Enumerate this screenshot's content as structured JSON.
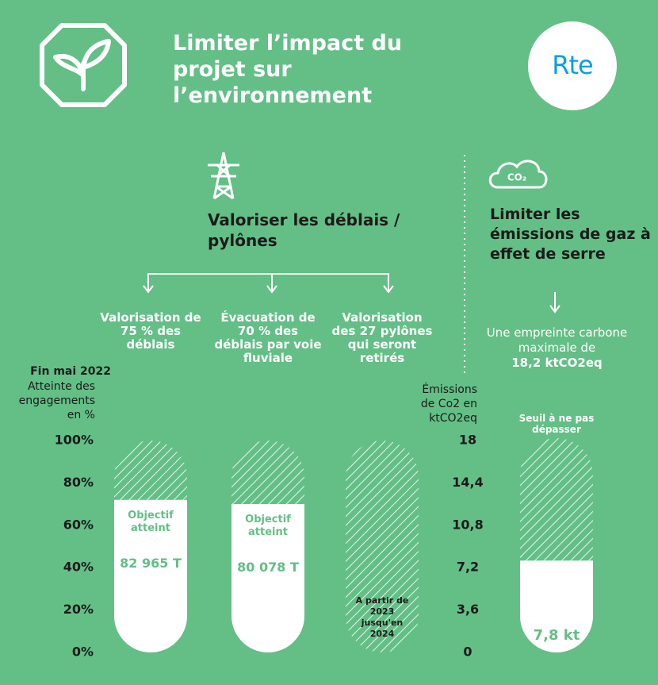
{
  "header": {
    "title": "Limiter l’impact du projet sur l’environnement",
    "logo": "Rte"
  },
  "sections": [
    {
      "title": "Valoriser les déblais / pylônes"
    },
    {
      "title": "Limiter les émissions de gaz à effet de serre",
      "subtitle": "Une empreinte carbone maximale de",
      "highlight": "18,2 ktCO2eq"
    }
  ],
  "chart_data": [
    {
      "type": "bar",
      "title": "Fin mai 2022",
      "y_label": "Atteinte des engagements en %",
      "categories": [
        "Valorisation de 75 % des déblais",
        "Évacuation de 70 % des déblais par voie fluviale",
        "Valorisation des 27 pylônes qui seront retirés"
      ],
      "values": [
        72,
        70,
        null
      ],
      "bar_notes": [
        [
          "Objectif atteint",
          "82 965 T"
        ],
        [
          "Objectif atteint",
          "80 078 T"
        ],
        [
          "A partir de 2023 jusqu'en 2024"
        ]
      ],
      "color": "#ffffff",
      "ylim": [
        0,
        100
      ],
      "yticks": [
        {
          "value": 0,
          "label": "0%"
        },
        {
          "value": 20,
          "label": "20%"
        },
        {
          "value": 40,
          "label": "40%"
        },
        {
          "value": 60,
          "label": "60%"
        },
        {
          "value": 80,
          "label": "80%"
        },
        {
          "value": 100,
          "label": "100%"
        }
      ]
    },
    {
      "type": "bar",
      "y_label": "Émissions de Co2 en ktCO2eq",
      "categories": [
        null
      ],
      "values": [
        7.8
      ],
      "value_labels": [
        "7,8 kt"
      ],
      "threshold": 18.2,
      "threshold_label": "Seuil à ne pas dépasser",
      "color": "#ffffff",
      "ylim": [
        0,
        18
      ],
      "yticks": [
        0,
        {
          "value": 3.6,
          "label": "3,6"
        },
        {
          "value": 7.2,
          "label": "7,2"
        },
        {
          "value": 10.8,
          "label": "10,8"
        },
        {
          "value": 14.4,
          "label": "14,4"
        },
        18
      ]
    }
  ]
}
